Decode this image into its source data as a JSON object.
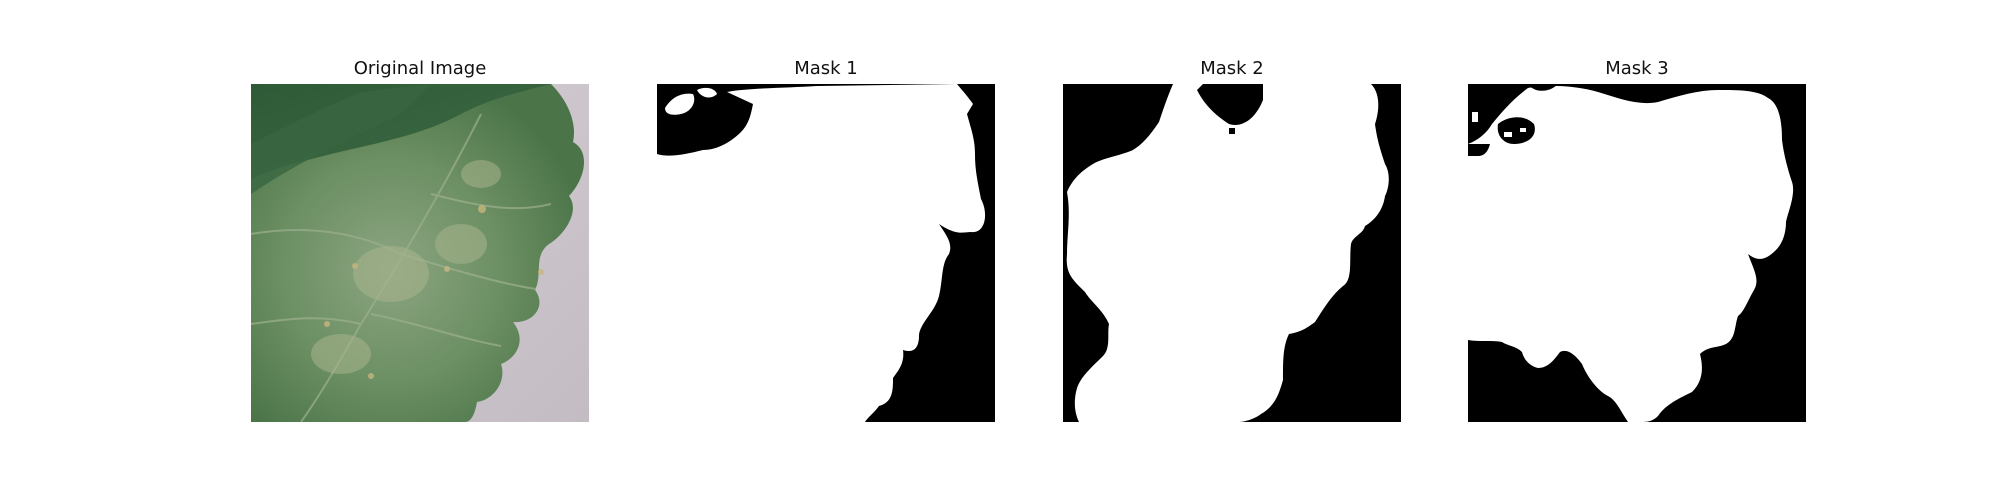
{
  "figure": {
    "panels": [
      {
        "title": "Original Image",
        "content": "leaf-photo"
      },
      {
        "title": "Mask 1",
        "content": "binary-mask"
      },
      {
        "title": "Mask 2",
        "content": "binary-mask"
      },
      {
        "title": "Mask 3",
        "content": "binary-mask"
      }
    ],
    "colors": {
      "background": "#ffffff",
      "mask_foreground": "#ffffff",
      "mask_background": "#000000",
      "leaf_dark": "#3f6f45",
      "leaf_light": "#7f9e79",
      "table_surface": "#c8c2c7"
    }
  }
}
